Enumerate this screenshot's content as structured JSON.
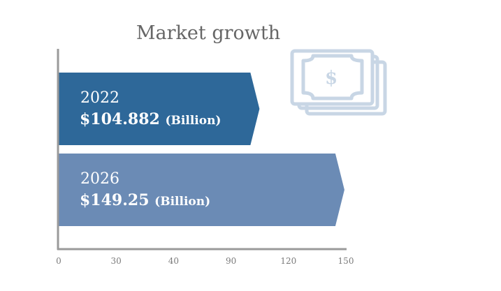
{
  "chart_data": {
    "type": "bar",
    "orientation": "horizontal",
    "title": "Market growth",
    "categories": [
      "2022",
      "2026"
    ],
    "values": [
      104.882,
      149.25
    ],
    "value_labels": [
      "$104.882",
      "$149.25"
    ],
    "unit_label": "(Billion)",
    "xlabel": "",
    "ylabel": "",
    "x_ticks": [
      "0",
      "30",
      "40",
      "90",
      "120",
      "150"
    ],
    "xlim": [
      0,
      150
    ],
    "grid": false,
    "legend": "none",
    "colors": [
      "#2e6899",
      "#6b8bb5"
    ]
  },
  "decoration": {
    "icon": "money-stack-icon",
    "icon_color": "#c8d6e5",
    "axis_color": "#9a9a9a"
  }
}
